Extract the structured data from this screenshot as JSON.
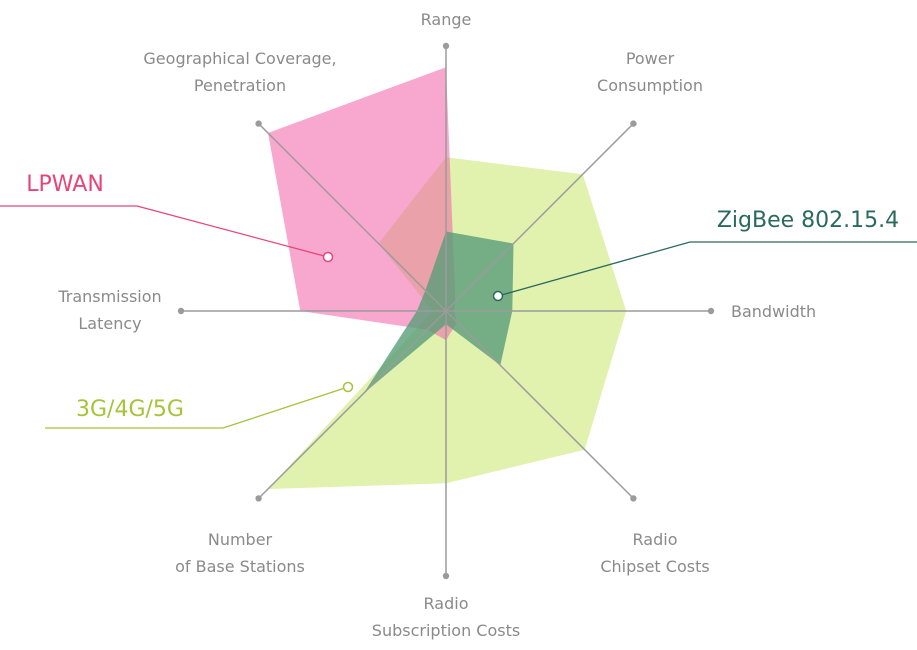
{
  "chart_data": {
    "type": "radar",
    "title": "",
    "axes": [
      {
        "id": "range",
        "lines": [
          "Range"
        ]
      },
      {
        "id": "power-consumption",
        "lines": [
          "Power",
          "Consumption"
        ]
      },
      {
        "id": "bandwidth",
        "lines": [
          "Bandwidth"
        ]
      },
      {
        "id": "radio-chipset-costs",
        "lines": [
          "Radio",
          "Chipset Costs"
        ]
      },
      {
        "id": "radio-subscription-costs",
        "lines": [
          "Radio",
          "Subscription Costs"
        ]
      },
      {
        "id": "number-of-base-stations",
        "lines": [
          "Number",
          "of Base Stations"
        ]
      },
      {
        "id": "transmission-latency",
        "lines": [
          "Transmission",
          "Latency"
        ]
      },
      {
        "id": "geographical-coverage",
        "lines": [
          "Geographical Coverage,",
          "Penetration"
        ]
      }
    ],
    "range": [
      0,
      1
    ],
    "series": [
      {
        "name": "3G/4G/5G",
        "color": "#dceea0",
        "label_color": "#a8c23a",
        "values": [
          0.58,
          0.73,
          0.68,
          0.74,
          0.65,
          0.95,
          0.05,
          0.36
        ]
      },
      {
        "name": "LPWAN",
        "color": "#f25fa8",
        "label_color": "#e6457a",
        "values": [
          0.92,
          0.05,
          0.03,
          0.06,
          0.11,
          0.1,
          0.55,
          0.95
        ]
      },
      {
        "name": "ZigBee 802.15.4",
        "color": "#5a9e79",
        "label_color": "#2a6a5c",
        "values": [
          0.3,
          0.36,
          0.25,
          0.29,
          0.05,
          0.44,
          0.11,
          0.11
        ]
      }
    ]
  }
}
